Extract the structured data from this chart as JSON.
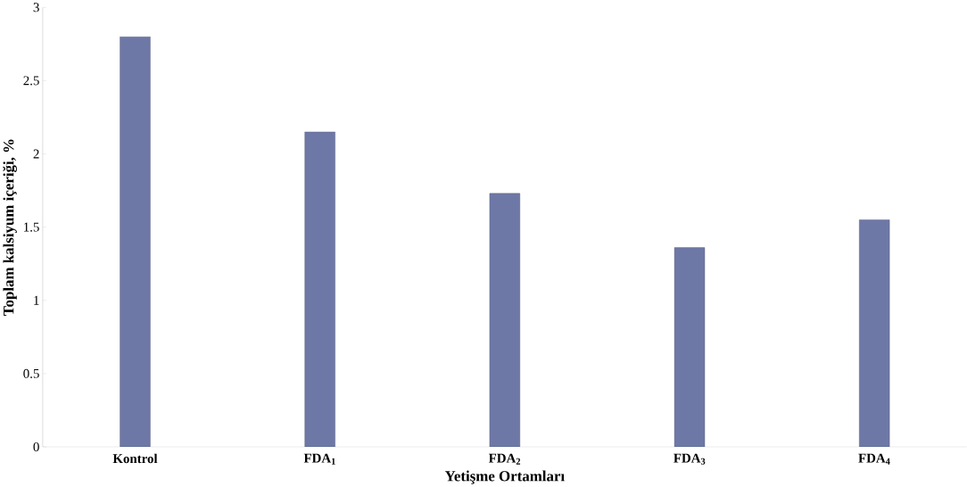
{
  "chart_data": {
    "type": "bar",
    "xlabel": "Yetişme Ortamları",
    "ylabel": "Toplam kalsiyum içeriği, %",
    "categories": [
      "Kontrol",
      "FDA$_{1}$",
      "FDA$_{2}$",
      "FDA$_{3}$",
      "FDA$_{4}$"
    ],
    "values": [
      2.8,
      2.15,
      1.73,
      1.36,
      1.55
    ],
    "color": "#6e78a6",
    "ylim": [
      0,
      3
    ],
    "yticks": [
      0,
      0.5,
      1,
      1.5,
      2,
      2.5,
      3
    ],
    "grid": false
  }
}
